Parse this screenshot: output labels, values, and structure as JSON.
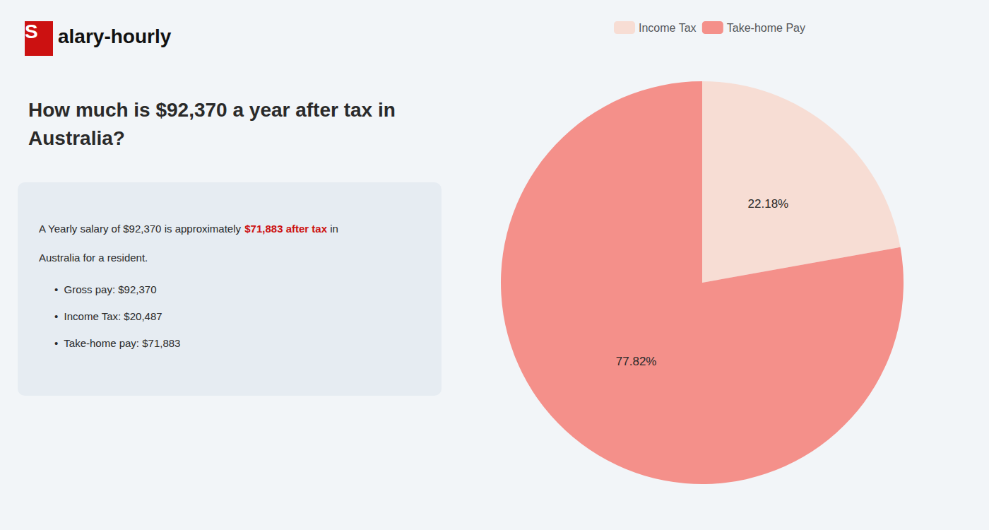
{
  "chart_data": {
    "type": "pie",
    "title": "How much is $92,370 a year after tax in Australia?",
    "annotations": [
      {
        "text": "S",
        "color": "#cc1111"
      },
      {
        "text": "alary-hourly"
      },
      {
        "text": "A Yearly salary of $92,370 is approximately "
      },
      {
        "text": "$71,883 after tax",
        "color": "#cc1111"
      },
      {
        "text": " in"
      },
      {
        "text": "Australia for a resident."
      },
      {
        "text": "•  Gross pay: $92,370"
      },
      {
        "text": "•  Income Tax: $20,487"
      },
      {
        "text": "•  Take-home pay: $71,883"
      }
    ],
    "categories": [
      "Income Tax",
      "Take-home Pay"
    ],
    "values": [
      22.18,
      77.82
    ],
    "value_labels": [
      "22.18%",
      "77.82%"
    ],
    "colors": [
      "#f7ddd4",
      "#f4908a"
    ],
    "data_labels": true,
    "legend": "top"
  }
}
